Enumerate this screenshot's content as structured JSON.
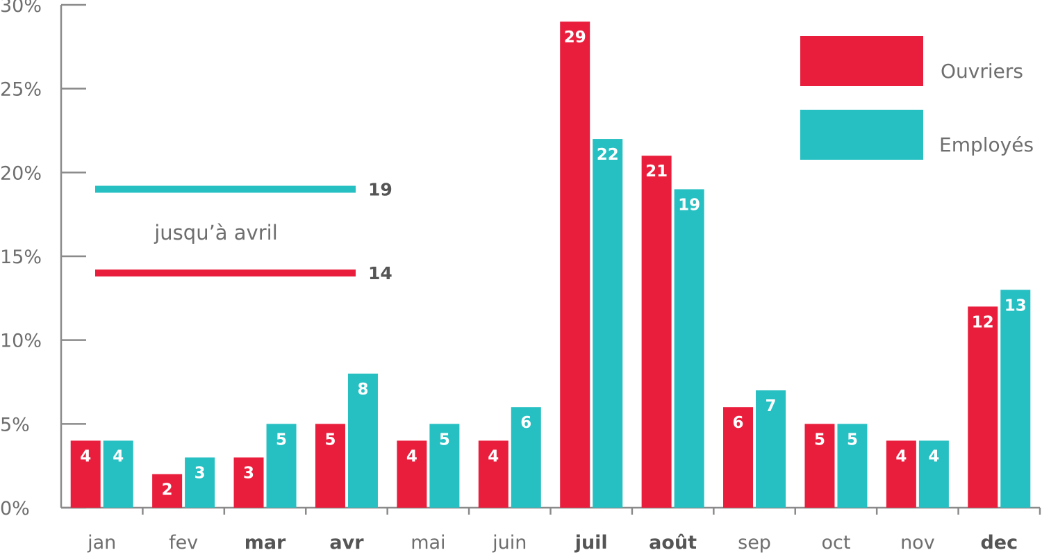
{
  "chart_data": {
    "type": "bar",
    "categories": [
      "jan",
      "fev",
      "mar",
      "avr",
      "mai",
      "juin",
      "juil",
      "août",
      "sep",
      "oct",
      "nov",
      "dec"
    ],
    "bold_categories": [
      "mar",
      "avr",
      "juil",
      "août",
      "dec"
    ],
    "series": [
      {
        "name": "Ouvriers",
        "color": "#e91e3c",
        "values": [
          4,
          2,
          3,
          5,
          4,
          4,
          29,
          21,
          6,
          5,
          4,
          12
        ]
      },
      {
        "name": "Employés",
        "color": "#26bfc2",
        "values": [
          4,
          3,
          5,
          8,
          5,
          6,
          22,
          19,
          7,
          5,
          4,
          13
        ]
      }
    ],
    "ylim": [
      0,
      30
    ],
    "yticks": [
      "0%",
      "5%",
      "10%",
      "15%",
      "20%",
      "25%",
      "30%"
    ],
    "ytick_values": [
      0,
      5,
      10,
      15,
      20,
      25,
      30
    ],
    "legend_position": "top-right",
    "annotations": [
      {
        "series": "Employés",
        "value": 19,
        "label": "19",
        "color": "#26bfc2"
      },
      {
        "series": "Ouvriers",
        "value": 14,
        "label": "14",
        "color": "#e91e3c"
      }
    ],
    "annotation_text": "jusqu’à avril",
    "axis_color": "#8a8a8a"
  }
}
